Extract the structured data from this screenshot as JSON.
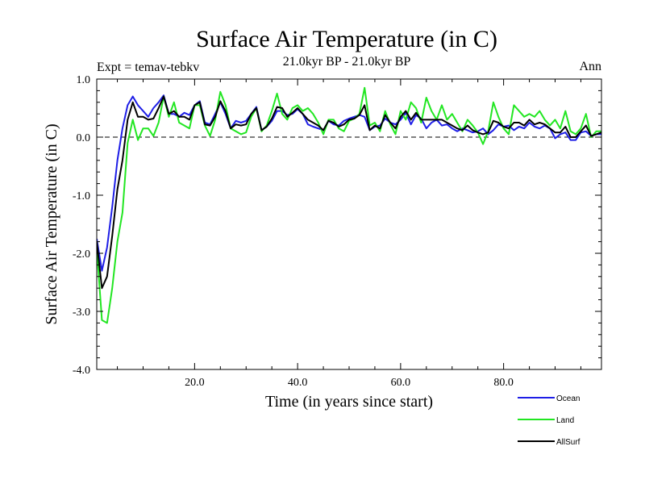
{
  "chart_data": {
    "type": "line",
    "title": "Surface Air Temperature (in C)",
    "subtitle": "21.0kyr BP - 21.0kyr BP",
    "left_note": "Expt = temav-tebkv",
    "right_note": "Ann",
    "xlabel": "Time (in years since start)",
    "ylabel": "Surface Air Temperature (in C)",
    "xlim": [
      1,
      99
    ],
    "ylim": [
      -4.0,
      1.0
    ],
    "xticks": [
      20,
      40,
      60,
      80
    ],
    "xtick_labels": [
      "20.0",
      "40.0",
      "60.0",
      "80.0"
    ],
    "yticks": [
      1.0,
      0.0,
      -1.0,
      -2.0,
      -3.0,
      -4.0
    ],
    "ytick_labels": [
      "1.0",
      "0.0",
      "-1.0",
      "-2.0",
      "-3.0",
      "-4.0"
    ],
    "reference_line": 0.0,
    "x": [
      1,
      2,
      3,
      4,
      5,
      6,
      7,
      8,
      9,
      10,
      11,
      12,
      13,
      14,
      15,
      16,
      17,
      18,
      19,
      20,
      21,
      22,
      23,
      24,
      25,
      26,
      27,
      28,
      29,
      30,
      31,
      32,
      33,
      34,
      35,
      36,
      37,
      38,
      39,
      40,
      41,
      42,
      43,
      44,
      45,
      46,
      47,
      48,
      49,
      50,
      51,
      52,
      53,
      54,
      55,
      56,
      57,
      58,
      59,
      60,
      61,
      62,
      63,
      64,
      65,
      66,
      67,
      68,
      69,
      70,
      71,
      72,
      73,
      74,
      75,
      76,
      77,
      78,
      79,
      80,
      81,
      82,
      83,
      84,
      85,
      86,
      87,
      88,
      89,
      90,
      91,
      92,
      93,
      94,
      95,
      96,
      97,
      98,
      99
    ],
    "series": [
      {
        "name": "Ocean",
        "color": "#1e1ee6",
        "values": [
          -1.75,
          -2.3,
          -1.9,
          -1.2,
          -0.4,
          0.15,
          0.55,
          0.7,
          0.55,
          0.45,
          0.35,
          0.5,
          0.6,
          0.72,
          0.4,
          0.4,
          0.35,
          0.42,
          0.38,
          0.55,
          0.62,
          0.25,
          0.22,
          0.4,
          0.6,
          0.4,
          0.15,
          0.28,
          0.25,
          0.28,
          0.4,
          0.52,
          0.12,
          0.18,
          0.28,
          0.45,
          0.45,
          0.38,
          0.4,
          0.48,
          0.4,
          0.22,
          0.18,
          0.15,
          0.12,
          0.28,
          0.22,
          0.2,
          0.28,
          0.32,
          0.35,
          0.38,
          0.35,
          0.12,
          0.18,
          0.2,
          0.32,
          0.25,
          0.22,
          0.3,
          0.42,
          0.22,
          0.38,
          0.32,
          0.15,
          0.25,
          0.3,
          0.2,
          0.22,
          0.15,
          0.1,
          0.15,
          0.12,
          0.08,
          0.1,
          0.15,
          0.05,
          0.12,
          0.22,
          0.18,
          0.2,
          0.12,
          0.18,
          0.15,
          0.25,
          0.18,
          0.15,
          0.2,
          0.15,
          -0.02,
          0.05,
          0.08,
          -0.05,
          -0.05,
          0.08,
          0.1,
          0.02,
          0.05,
          0.05
        ]
      },
      {
        "name": "Land",
        "color": "#22e622",
        "values": [
          -1.9,
          -3.15,
          -3.2,
          -2.6,
          -1.8,
          -1.3,
          -0.1,
          0.3,
          -0.05,
          0.15,
          0.15,
          0.02,
          0.25,
          0.7,
          0.35,
          0.6,
          0.25,
          0.2,
          0.15,
          0.55,
          0.55,
          0.2,
          0.02,
          0.3,
          0.78,
          0.55,
          0.15,
          0.1,
          0.05,
          0.08,
          0.35,
          0.5,
          0.1,
          0.2,
          0.45,
          0.75,
          0.4,
          0.3,
          0.5,
          0.55,
          0.45,
          0.5,
          0.4,
          0.25,
          0.05,
          0.3,
          0.3,
          0.15,
          0.1,
          0.28,
          0.32,
          0.4,
          0.85,
          0.2,
          0.25,
          0.1,
          0.45,
          0.22,
          0.05,
          0.45,
          0.3,
          0.6,
          0.5,
          0.25,
          0.68,
          0.45,
          0.3,
          0.55,
          0.3,
          0.4,
          0.25,
          0.1,
          0.3,
          0.2,
          0.08,
          -0.12,
          0.1,
          0.6,
          0.35,
          0.15,
          0.05,
          0.55,
          0.45,
          0.35,
          0.4,
          0.35,
          0.45,
          0.3,
          0.2,
          0.3,
          0.15,
          0.45,
          0.1,
          0.05,
          0.15,
          0.4,
          0.0,
          0.1,
          0.1
        ]
      },
      {
        "name": "AllSurf",
        "color": "#000000",
        "values": [
          -1.8,
          -2.6,
          -2.4,
          -1.7,
          -0.9,
          -0.4,
          0.3,
          0.6,
          0.35,
          0.35,
          0.3,
          0.32,
          0.5,
          0.7,
          0.4,
          0.45,
          0.35,
          0.35,
          0.3,
          0.55,
          0.6,
          0.22,
          0.2,
          0.35,
          0.62,
          0.45,
          0.15,
          0.22,
          0.2,
          0.22,
          0.4,
          0.5,
          0.12,
          0.18,
          0.32,
          0.52,
          0.5,
          0.35,
          0.42,
          0.5,
          0.4,
          0.3,
          0.25,
          0.2,
          0.12,
          0.28,
          0.25,
          0.18,
          0.22,
          0.3,
          0.32,
          0.38,
          0.55,
          0.12,
          0.2,
          0.15,
          0.38,
          0.25,
          0.15,
          0.35,
          0.45,
          0.3,
          0.42,
          0.3,
          0.3,
          0.3,
          0.3,
          0.3,
          0.25,
          0.2,
          0.15,
          0.12,
          0.2,
          0.12,
          0.08,
          0.05,
          0.08,
          0.28,
          0.25,
          0.18,
          0.15,
          0.25,
          0.25,
          0.2,
          0.3,
          0.22,
          0.25,
          0.22,
          0.15,
          0.08,
          0.08,
          0.18,
          0.0,
          0.0,
          0.1,
          0.2,
          0.02,
          0.05,
          0.08
        ]
      }
    ],
    "legend_placement": "bottom-right"
  }
}
